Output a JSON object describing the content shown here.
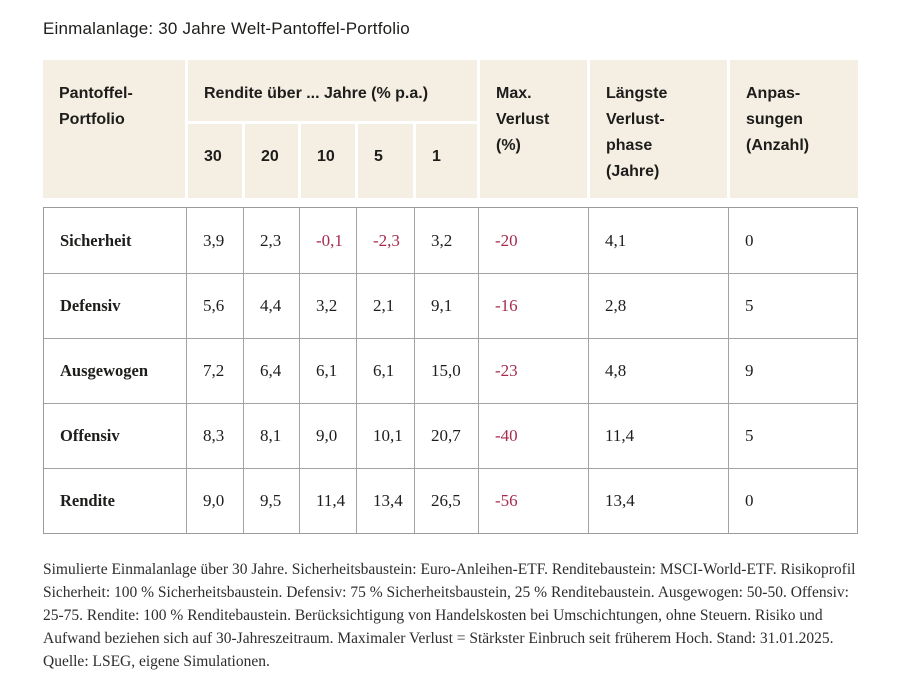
{
  "title": "Einmalanlage: 30 Jahre Welt-Pantoffel-Portfolio",
  "colors": {
    "header_bg": "#f5eee3",
    "negative": "#a52c4d",
    "grid_border": "#a3a3a3",
    "text": "#1d1d1b"
  },
  "table": {
    "header": {
      "portfolio": "Pantoffel-\nPortfolio",
      "rendite_group": "Rendite über ... Jahre (% p.a.)",
      "year_cols": [
        "30",
        "20",
        "10",
        "5",
        "1"
      ],
      "max_verlust": "Max.\nVerlust\n(%)",
      "laengste_verlustphase": "Längste\nVerlust-\nphase\n(Jahre)",
      "anpassungen": "Anpas-\nsungen\n(Anzahl)"
    },
    "rows": [
      {
        "label": "Sicherheit",
        "rendite": [
          "3,9",
          "2,3",
          "-0,1",
          "-2,3",
          "3,2"
        ],
        "max_verlust": "-20",
        "laengste_verlustphase": "4,1",
        "anpassungen": "0"
      },
      {
        "label": "Defensiv",
        "rendite": [
          "5,6",
          "4,4",
          "3,2",
          "2,1",
          "9,1"
        ],
        "max_verlust": "-16",
        "laengste_verlustphase": "2,8",
        "anpassungen": "5"
      },
      {
        "label": "Ausgewogen",
        "rendite": [
          "7,2",
          "6,4",
          "6,1",
          "6,1",
          "15,0"
        ],
        "max_verlust": "-23",
        "laengste_verlustphase": "4,8",
        "anpassungen": "9"
      },
      {
        "label": "Offensiv",
        "rendite": [
          "8,3",
          "8,1",
          "9,0",
          "10,1",
          "20,7"
        ],
        "max_verlust": "-40",
        "laengste_verlustphase": "11,4",
        "anpassungen": "5"
      },
      {
        "label": "Rendite",
        "rendite": [
          "9,0",
          "9,5",
          "11,4",
          "13,4",
          "26,5"
        ],
        "max_verlust": "-56",
        "laengste_verlustphase": "13,4",
        "anpassungen": "0"
      }
    ]
  },
  "chart_data": {
    "type": "table",
    "title": "Einmalanlage: 30 Jahre Welt-Pantoffel-Portfolio",
    "columns": [
      "Pantoffel-Portfolio",
      "Rendite über 30 Jahre (% p.a.)",
      "Rendite über 20 Jahre (% p.a.)",
      "Rendite über 10 Jahre (% p.a.)",
      "Rendite über 5 Jahre (% p.a.)",
      "Rendite über 1 Jahr (% p.a.)",
      "Max. Verlust (%)",
      "Längste Verlustphase (Jahre)",
      "Anpassungen (Anzahl)"
    ],
    "rows": [
      [
        "Sicherheit",
        3.9,
        2.3,
        -0.1,
        -2.3,
        3.2,
        -20,
        4.1,
        0
      ],
      [
        "Defensiv",
        5.6,
        4.4,
        3.2,
        2.1,
        9.1,
        -16,
        2.8,
        5
      ],
      [
        "Ausgewogen",
        7.2,
        6.4,
        6.1,
        6.1,
        15.0,
        -23,
        4.8,
        9
      ],
      [
        "Offensiv",
        8.3,
        8.1,
        9.0,
        10.1,
        20.7,
        -40,
        11.4,
        5
      ],
      [
        "Rendite",
        9.0,
        9.5,
        11.4,
        13.4,
        26.5,
        -56,
        13.4,
        0
      ]
    ],
    "notes": "Negative Werte in Rot dargestellt; Dezimaltrennzeichen Komma."
  },
  "footnote": "Simulierte Einmalanlage über 30 Jahre. Sicherheitsbaustein: Euro-Anleihen-ETF. Renditebaustein: MSCI-World-ETF. Risikoprofil Sicherheit: 100 % Sicherheitsbaustein. Defensiv: 75 % Sicherheitsbaustein, 25 % Renditebaustein. Ausgewogen: 50-50. Offensiv: 25-75. Rendite: 100 % Renditebaustein. Berücksichtigung von Handelskosten bei Umschichtungen, ohne Steuern. Risiko und Aufwand beziehen sich auf 30-Jahreszeitraum. Maximaler Verlust = Stärkster Einbruch seit früherem Hoch. Stand: 31.01.2025. Quelle: LSEG, eigene Simulationen."
}
